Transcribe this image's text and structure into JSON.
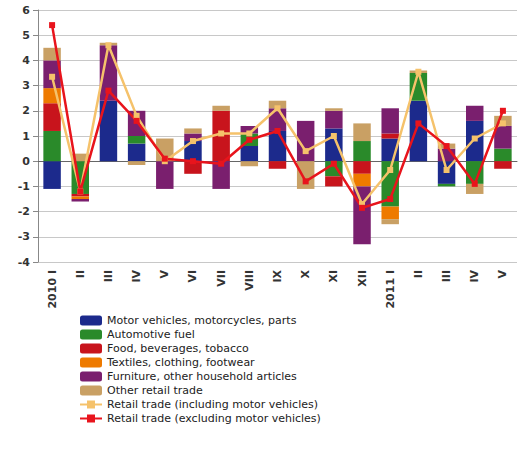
{
  "chart_data": {
    "type": "bar",
    "stacked": true,
    "grid": true,
    "legend": "bottom-left",
    "categories": [
      "2010 I",
      "II",
      "III",
      "IV",
      "V",
      "VI",
      "VII",
      "VIII",
      "IX",
      "X",
      "XI",
      "XII",
      "2011 I",
      "II",
      "III",
      "IV",
      "V"
    ],
    "ylim": [
      -4,
      6
    ],
    "yticks": [
      -4,
      -3,
      -2,
      -1,
      0,
      1,
      2,
      3,
      4,
      5,
      6
    ],
    "series": [
      {
        "name": "Motor vehicles, motorcycles, parts",
        "type": "bar",
        "color": "#1c2a8c",
        "values": [
          -1.1,
          0,
          2.4,
          0.7,
          0,
          0.8,
          0,
          0.6,
          1.2,
          0,
          1.3,
          0,
          0.9,
          2.4,
          -0.9,
          1.6,
          0
        ]
      },
      {
        "name": "Automotive fuel",
        "type": "bar",
        "color": "#2a8a2a",
        "values": [
          1.2,
          -1.3,
          0,
          0.3,
          0,
          0,
          0,
          0.5,
          0,
          0,
          -0.6,
          0.8,
          -1.8,
          1.1,
          -0.1,
          -0.9,
          0.5
        ]
      },
      {
        "name": "Food, beverages, tobacco",
        "type": "bar",
        "color": "#c8141c",
        "values": [
          1.1,
          -0.1,
          0,
          0,
          0,
          -0.5,
          2.0,
          0,
          -0.3,
          0,
          -0.4,
          -0.5,
          0.2,
          0,
          0,
          0,
          -0.3
        ]
      },
      {
        "name": "Textiles, clothing, footwear",
        "type": "bar",
        "color": "#ee7a00",
        "values": [
          0.6,
          -0.1,
          0,
          0,
          0,
          0,
          0,
          0,
          0,
          0,
          0,
          -0.5,
          -0.5,
          0,
          0,
          0,
          0
        ]
      },
      {
        "name": "Furniture, other household articles",
        "type": "bar",
        "color": "#7a1f6e",
        "values": [
          1.1,
          -0.1,
          2.2,
          1.0,
          -1.1,
          0.3,
          -1.1,
          0.3,
          0.9,
          1.6,
          0.7,
          -2.3,
          1.0,
          0,
          0.5,
          0.6,
          0.9
        ]
      },
      {
        "name": "Other retail trade",
        "type": "bar",
        "color": "#c9a064",
        "values": [
          0.5,
          0.3,
          0.1,
          -0.15,
          0.9,
          0.2,
          0.2,
          -0.2,
          0.3,
          -1.1,
          0.1,
          0.7,
          -0.2,
          0.1,
          0.2,
          -0.4,
          0.4
        ]
      },
      {
        "name": "Retail trade (including motor vehicles)",
        "type": "line",
        "marker": "square",
        "color": "#f5c26b",
        "values": [
          3.35,
          -1.2,
          4.6,
          1.8,
          0.0,
          0.8,
          1.1,
          1.1,
          2.1,
          0.4,
          1.0,
          -1.7,
          -0.35,
          3.55,
          -0.35,
          0.9,
          1.5
        ]
      },
      {
        "name": "Retail trade (excluding motor vehicles)",
        "type": "line",
        "marker": "square",
        "color": "#e8141c",
        "values": [
          5.4,
          -1.2,
          2.8,
          1.6,
          0.1,
          0.0,
          -0.1,
          0.85,
          1.2,
          -0.8,
          -0.1,
          -1.85,
          -1.5,
          1.5,
          0.6,
          -0.9,
          2.0
        ]
      }
    ]
  }
}
